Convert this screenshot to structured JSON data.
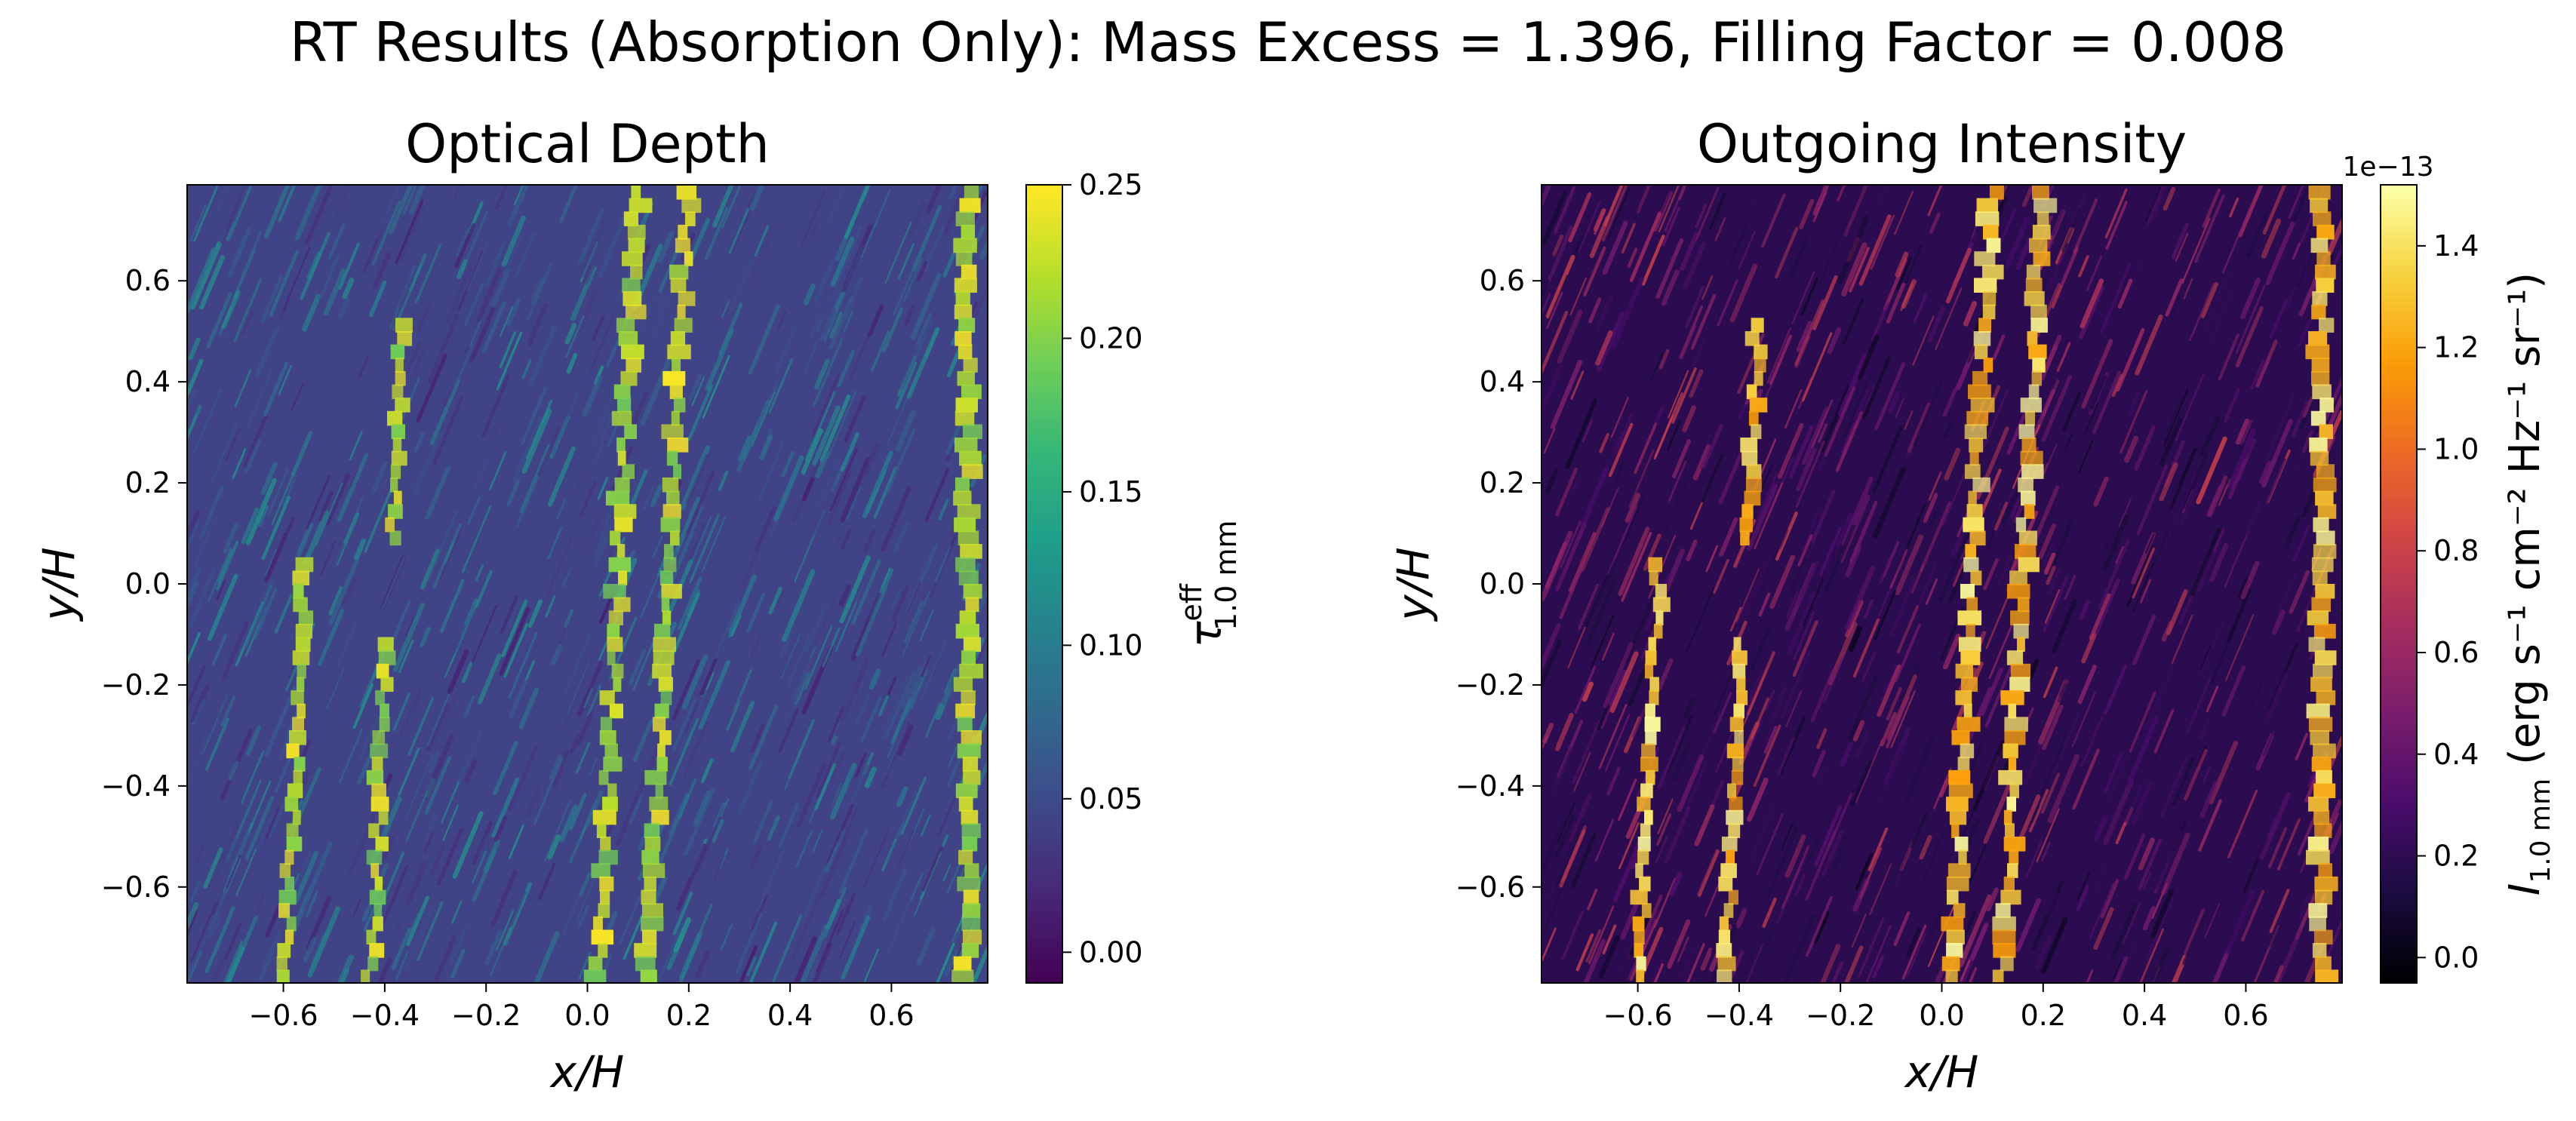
{
  "suptitle": "RT Results (Absorption Only): Mass Excess = 1.396, Filling Factor = 0.008",
  "chart_data": [
    {
      "type": "heatmap",
      "title": "Optical Depth",
      "xlabel": "x/H",
      "ylabel": "y/H",
      "xlim": [
        -0.79,
        0.79
      ],
      "ylim": [
        -0.79,
        0.79
      ],
      "xticks": [
        -0.6,
        -0.4,
        -0.2,
        0.0,
        0.2,
        0.4,
        0.6
      ],
      "xtick_labels": [
        "−0.6",
        "−0.4",
        "−0.2",
        "0.0",
        "0.2",
        "0.4",
        "0.6"
      ],
      "yticks": [
        -0.6,
        -0.4,
        -0.2,
        0.0,
        0.2,
        0.4,
        0.6
      ],
      "ytick_labels": [
        "−0.6",
        "−0.4",
        "−0.2",
        "0.0",
        "0.2",
        "0.4",
        "0.6"
      ],
      "colormap": "viridis",
      "colorbar": {
        "label_main": "τ",
        "label_sup": "eff",
        "label_sub": "1.0 mm",
        "range": [
          -0.01,
          0.25
        ],
        "ticks": [
          0.0,
          0.05,
          0.1,
          0.15,
          0.2,
          0.25
        ],
        "tick_labels": [
          "0.00",
          "0.05",
          "0.10",
          "0.15",
          "0.20",
          "0.25"
        ],
        "offset_text": ""
      },
      "bright_filaments_xH": [
        -0.6,
        -0.43,
        0.02,
        0.12,
        0.75
      ]
    },
    {
      "type": "heatmap",
      "title": "Outgoing Intensity",
      "xlabel": "x/H",
      "ylabel": "y/H",
      "xlim": [
        -0.79,
        0.79
      ],
      "ylim": [
        -0.79,
        0.79
      ],
      "xticks": [
        -0.6,
        -0.4,
        -0.2,
        0.0,
        0.2,
        0.4,
        0.6
      ],
      "xtick_labels": [
        "−0.6",
        "−0.4",
        "−0.2",
        "0.0",
        "0.2",
        "0.4",
        "0.6"
      ],
      "yticks": [
        -0.6,
        -0.4,
        -0.2,
        0.0,
        0.2,
        0.4,
        0.6
      ],
      "ytick_labels": [
        "−0.6",
        "−0.4",
        "−0.2",
        "0.0",
        "0.2",
        "0.4",
        "0.6"
      ],
      "colormap": "inferno",
      "colorbar": {
        "label_main": "I",
        "label_sub": "1.0 mm",
        "label_units": "(erg s⁻¹ cm⁻² Hz⁻¹ sr⁻¹)",
        "range": [
          -0.05,
          1.52
        ],
        "ticks": [
          0.0,
          0.2,
          0.4,
          0.6,
          0.8,
          1.0,
          1.2,
          1.4
        ],
        "tick_labels": [
          "0.0",
          "0.2",
          "0.4",
          "0.6",
          "0.8",
          "1.0",
          "1.2",
          "1.4"
        ],
        "offset_text": "1e−13"
      },
      "bright_filaments_xH": [
        -0.6,
        -0.43,
        0.02,
        0.12,
        0.75
      ]
    }
  ]
}
